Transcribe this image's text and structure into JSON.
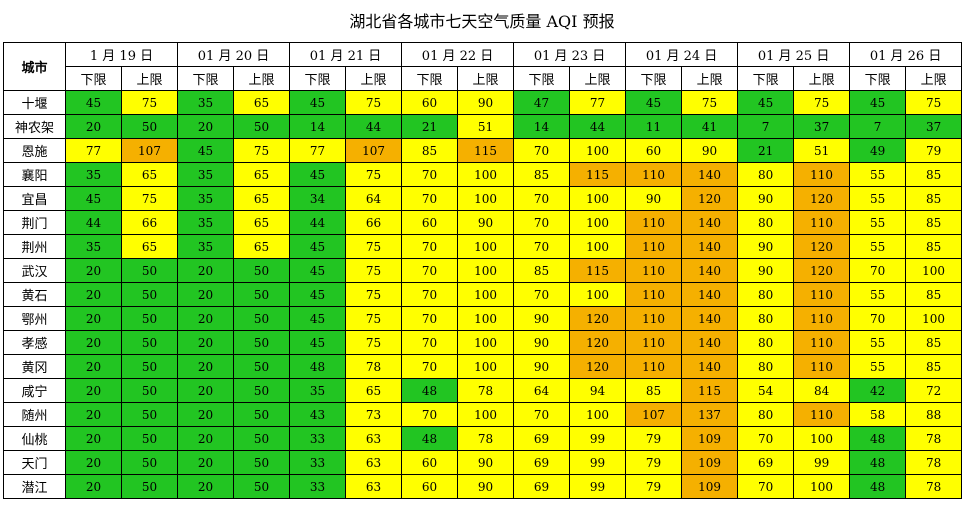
{
  "title": "湖北省各城市七天空气质量 AQI 预报",
  "header": {
    "city": "城市",
    "lower": "下限",
    "upper": "上限",
    "dates": [
      "1 月 19 日",
      "01 月 20 日",
      "01 月 21 日",
      "01 月 22 日",
      "01 月 23 日",
      "01 月 24 日",
      "01 月 25 日",
      "01 月 26 日"
    ]
  },
  "colors": {
    "green": "#22c522",
    "yellow": "#ffff00",
    "orange": "#f5b000"
  },
  "rows": [
    {
      "city": "十堰",
      "values": [
        45,
        75,
        35,
        65,
        45,
        75,
        60,
        90,
        47,
        77,
        45,
        75,
        45,
        75,
        45,
        75
      ]
    },
    {
      "city": "神农架",
      "values": [
        20,
        50,
        20,
        50,
        14,
        44,
        21,
        51,
        14,
        44,
        11,
        41,
        7,
        37,
        7,
        37
      ]
    },
    {
      "city": "恩施",
      "values": [
        77,
        107,
        45,
        75,
        77,
        107,
        85,
        115,
        70,
        100,
        60,
        90,
        21,
        51,
        49,
        79
      ]
    },
    {
      "city": "襄阳",
      "values": [
        35,
        65,
        35,
        65,
        45,
        75,
        70,
        100,
        85,
        115,
        110,
        140,
        80,
        110,
        55,
        85
      ]
    },
    {
      "city": "宜昌",
      "values": [
        45,
        75,
        35,
        65,
        34,
        64,
        70,
        100,
        70,
        100,
        90,
        120,
        90,
        120,
        55,
        85
      ]
    },
    {
      "city": "荆门",
      "values": [
        44,
        66,
        35,
        65,
        44,
        66,
        60,
        90,
        70,
        100,
        110,
        140,
        80,
        110,
        55,
        85
      ]
    },
    {
      "city": "荆州",
      "values": [
        35,
        65,
        35,
        65,
        45,
        75,
        70,
        100,
        70,
        100,
        110,
        140,
        90,
        120,
        55,
        85
      ]
    },
    {
      "city": "武汉",
      "values": [
        20,
        50,
        20,
        50,
        45,
        75,
        70,
        100,
        85,
        115,
        110,
        140,
        90,
        120,
        70,
        100
      ]
    },
    {
      "city": "黄石",
      "values": [
        20,
        50,
        20,
        50,
        45,
        75,
        70,
        100,
        70,
        100,
        110,
        140,
        80,
        110,
        55,
        85
      ]
    },
    {
      "city": "鄂州",
      "values": [
        20,
        50,
        20,
        50,
        45,
        75,
        70,
        100,
        90,
        120,
        110,
        140,
        80,
        110,
        70,
        100
      ]
    },
    {
      "city": "孝感",
      "values": [
        20,
        50,
        20,
        50,
        45,
        75,
        70,
        100,
        90,
        120,
        110,
        140,
        80,
        110,
        55,
        85
      ]
    },
    {
      "city": "黄冈",
      "values": [
        20,
        50,
        20,
        50,
        48,
        78,
        70,
        100,
        90,
        120,
        110,
        140,
        80,
        110,
        55,
        85
      ]
    },
    {
      "city": "咸宁",
      "values": [
        20,
        50,
        20,
        50,
        35,
        65,
        48,
        78,
        64,
        94,
        85,
        115,
        54,
        84,
        42,
        72
      ]
    },
    {
      "city": "随州",
      "values": [
        20,
        50,
        20,
        50,
        43,
        73,
        70,
        100,
        70,
        100,
        107,
        137,
        80,
        110,
        58,
        88
      ]
    },
    {
      "city": "仙桃",
      "values": [
        20,
        50,
        20,
        50,
        33,
        63,
        48,
        78,
        69,
        99,
        79,
        109,
        70,
        100,
        48,
        78
      ]
    },
    {
      "city": "天门",
      "values": [
        20,
        50,
        20,
        50,
        33,
        63,
        60,
        90,
        69,
        99,
        79,
        109,
        69,
        99,
        48,
        78
      ]
    },
    {
      "city": "潜江",
      "values": [
        20,
        50,
        20,
        50,
        33,
        63,
        60,
        90,
        69,
        99,
        79,
        109,
        70,
        100,
        48,
        78
      ]
    }
  ]
}
